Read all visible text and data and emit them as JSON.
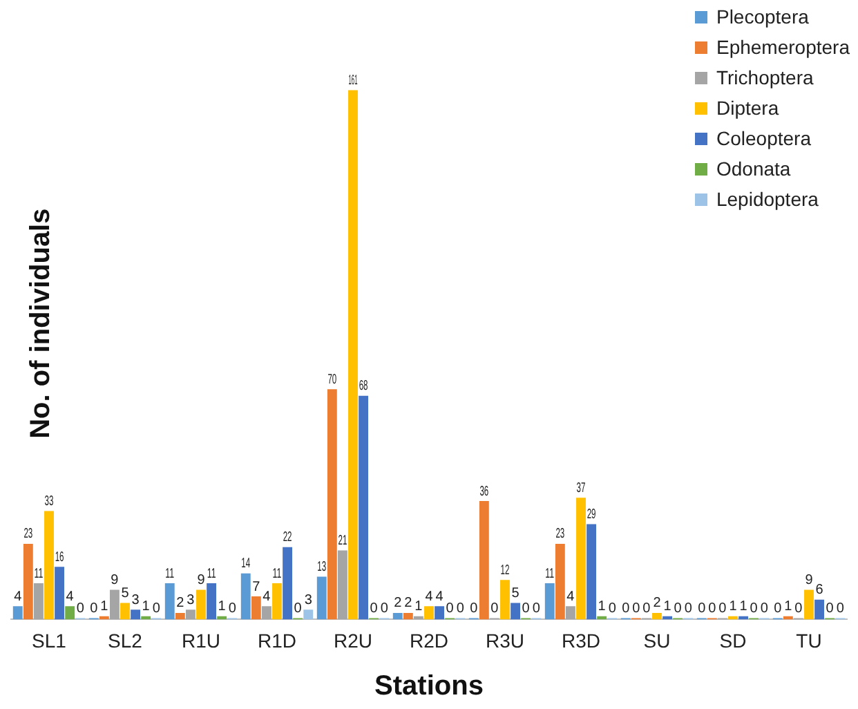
{
  "chart_data": {
    "type": "bar",
    "xlabel": "Stations",
    "ylabel": "No. of individuals",
    "categories": [
      "SL1",
      "SL2",
      "R1U",
      "R1D",
      "R2U",
      "R2D",
      "R3U",
      "R3D",
      "SU",
      "SD",
      "TU"
    ],
    "series": [
      {
        "name": "Plecoptera",
        "color": "#5b9bd5",
        "values": [
          4,
          0,
          11,
          14,
          13,
          2,
          0,
          11,
          0,
          0,
          0
        ]
      },
      {
        "name": "Ephemeroptera",
        "color": "#ed7d31",
        "values": [
          23,
          1,
          2,
          7,
          70,
          2,
          36,
          23,
          0,
          0,
          1
        ]
      },
      {
        "name": "Trichoptera",
        "color": "#a5a5a5",
        "values": [
          11,
          9,
          3,
          4,
          21,
          1,
          0,
          4,
          0,
          0,
          0
        ]
      },
      {
        "name": "Diptera",
        "color": "#ffc000",
        "values": [
          33,
          5,
          9,
          11,
          161,
          4,
          12,
          37,
          2,
          1,
          9
        ]
      },
      {
        "name": "Coleoptera",
        "color": "#4472c4",
        "values": [
          16,
          3,
          11,
          22,
          68,
          4,
          5,
          29,
          1,
          1,
          6
        ]
      },
      {
        "name": "Odonata",
        "color": "#70ad47",
        "values": [
          4,
          1,
          1,
          0,
          0,
          0,
          0,
          1,
          0,
          0,
          0
        ]
      },
      {
        "name": "Lepidoptera",
        "color": "#9dc3e6",
        "values": [
          0,
          0,
          0,
          3,
          0,
          0,
          0,
          0,
          0,
          0,
          0
        ]
      }
    ],
    "data_labels": true,
    "grid": false,
    "legend": "top right",
    "tick_labels": "x"
  }
}
